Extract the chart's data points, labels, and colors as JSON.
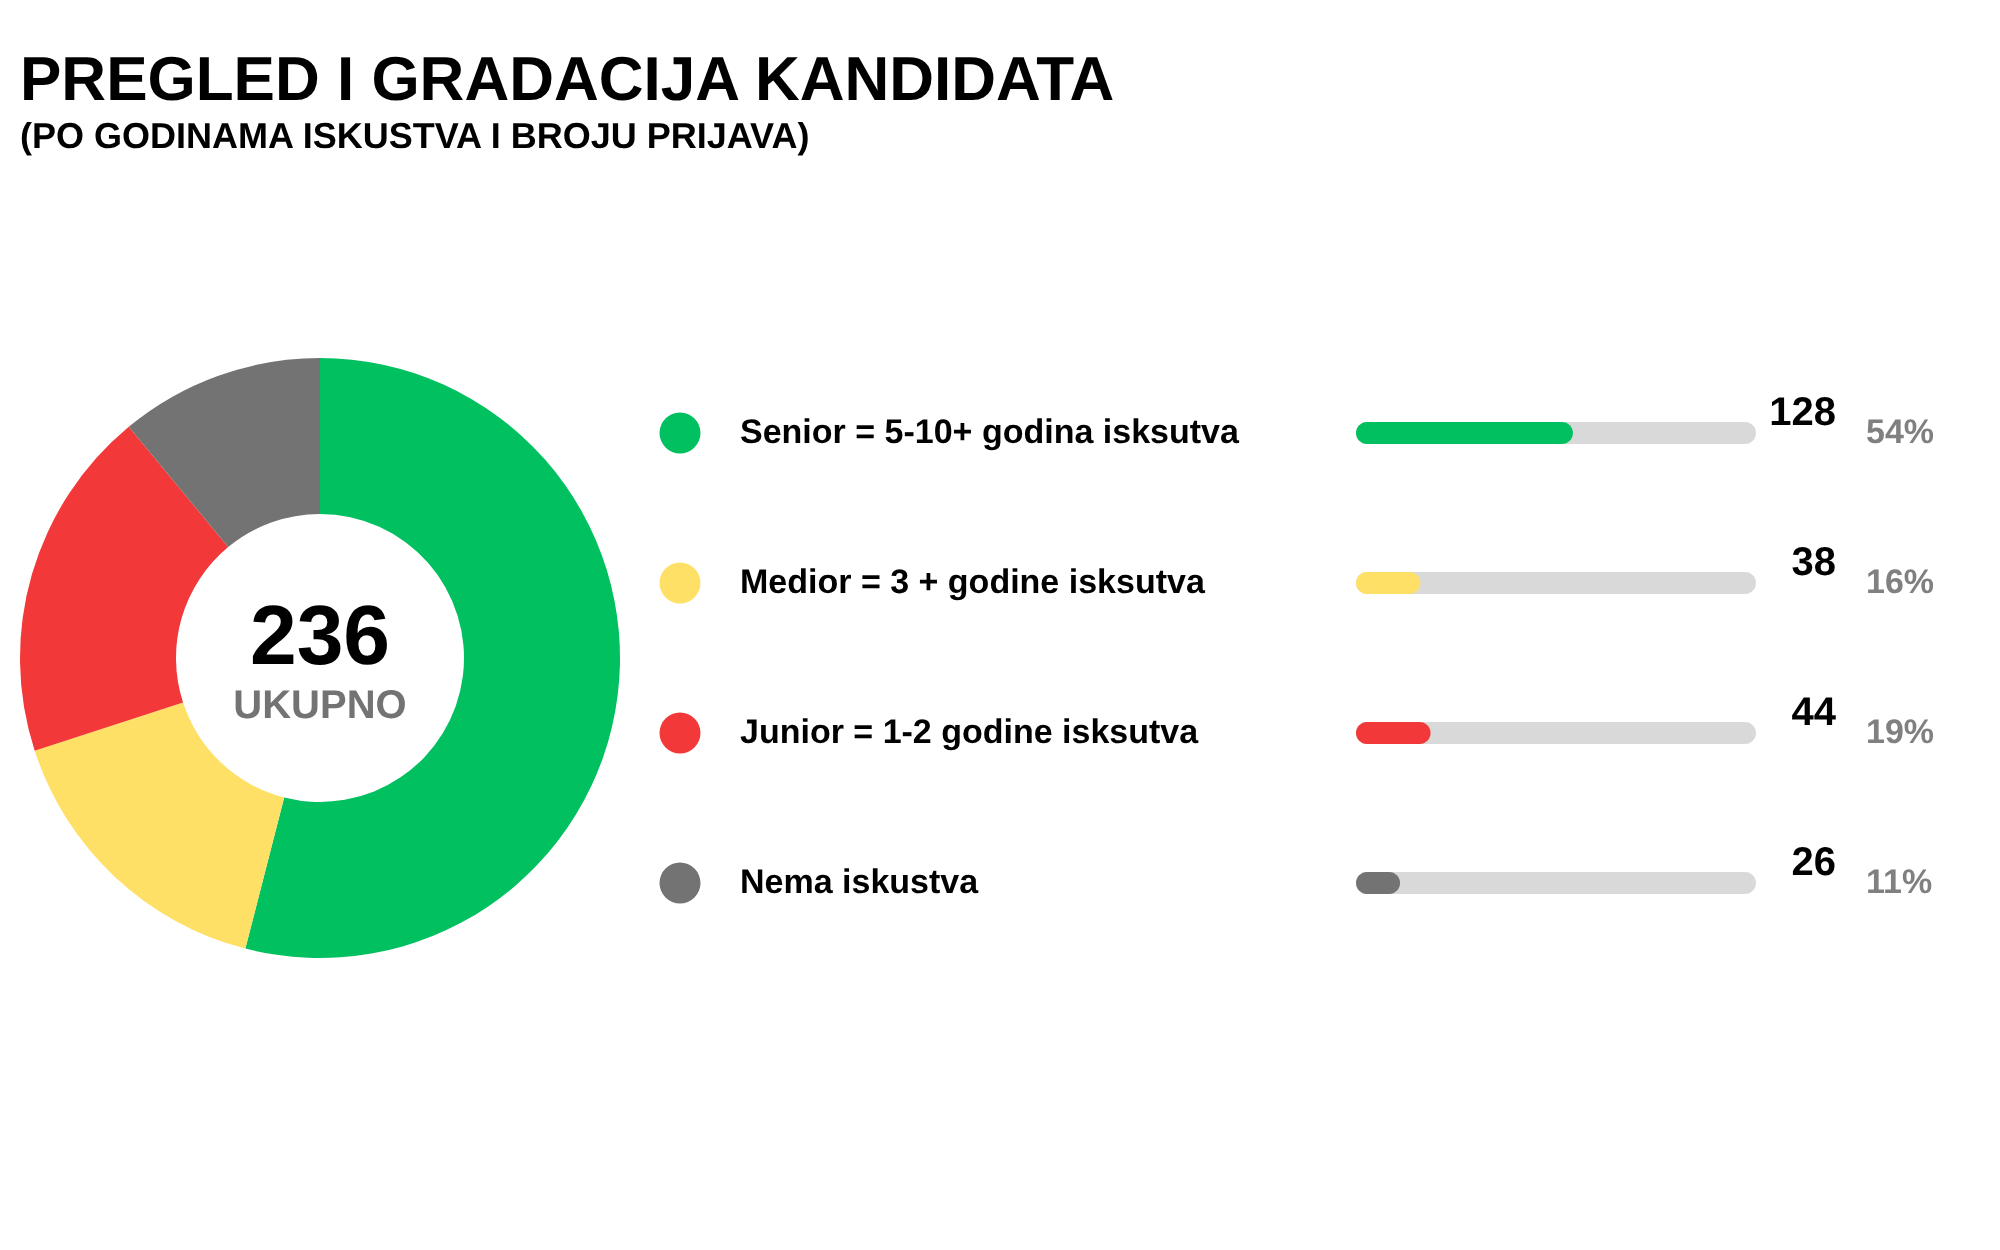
{
  "chart_data": [
    {
      "type": "donut",
      "title": "PREGLED I GRADACIJA KANDIDATA",
      "subtitle": "(PO GODINAMA ISKUSTVA I BROJU PRIJAVA)",
      "categories": [
        "Senior = 5-10+ godina isksutva",
        "Medior = 3 + godine isksutva",
        "Junior = 1-2 godine isksutva",
        "Nema iskustva"
      ],
      "values": [
        54,
        16,
        19,
        11
      ],
      "colors": [
        "#00c060",
        "#ffe066",
        "#f23838",
        "#737373"
      ],
      "annotations": [
        "236",
        "UKUPNO"
      ],
      "legend": "right"
    },
    {
      "type": "bar",
      "orientation": "horizontal",
      "categories": [
        null,
        null,
        null,
        null
      ],
      "values": [
        128,
        38,
        44,
        26
      ],
      "colors": [
        "#00c060",
        "#ffe066",
        "#f23838",
        "#737373"
      ],
      "data_labels": true,
      "annotations": [
        "54%",
        "16%",
        "19%",
        "11%"
      ]
    }
  ]
}
